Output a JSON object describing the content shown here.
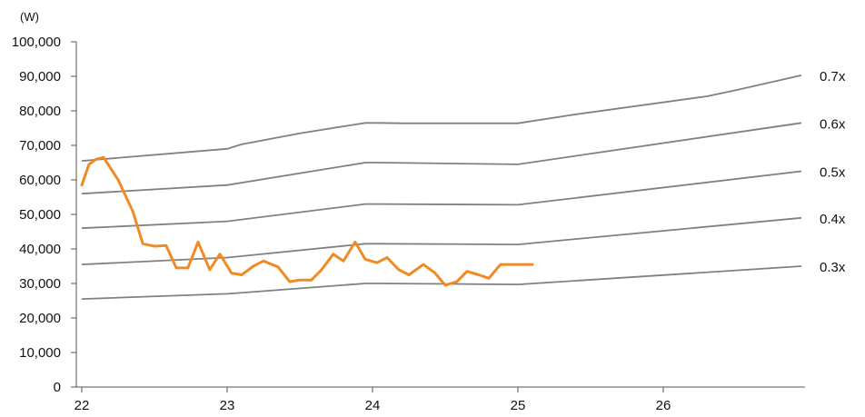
{
  "chart_data": {
    "type": "line",
    "unit_label": "(W)",
    "y_ticks": [
      "0",
      "10,000",
      "20,000",
      "30,000",
      "40,000",
      "50,000",
      "60,000",
      "70,000",
      "80,000",
      "90,000",
      "100,000"
    ],
    "x_ticks": [
      "22",
      "23",
      "24",
      "25",
      "26"
    ],
    "ylim": [
      0,
      100000
    ],
    "xlim": [
      22,
      26.95
    ],
    "grid": false,
    "colors": {
      "price": "#F08A24",
      "band": "#808080",
      "axis": "#555555"
    },
    "price_series": {
      "x": [
        22.0,
        22.05,
        22.1,
        22.15,
        22.25,
        22.35,
        22.42,
        22.5,
        22.58,
        22.65,
        22.73,
        22.8,
        22.88,
        22.95,
        23.03,
        23.1,
        23.18,
        23.25,
        23.35,
        23.43,
        23.5,
        23.58,
        23.65,
        23.73,
        23.8,
        23.88,
        23.95,
        24.03,
        24.1,
        24.18,
        24.25,
        24.35,
        24.43,
        24.5,
        24.58,
        24.65,
        24.73,
        24.8,
        24.88,
        24.95,
        25.03,
        25.1
      ],
      "y": [
        58500,
        64500,
        66000,
        66500,
        60000,
        51000,
        41500,
        40800,
        41000,
        34500,
        34500,
        42000,
        34000,
        38500,
        33000,
        32500,
        35000,
        36500,
        34800,
        30500,
        31000,
        31000,
        34000,
        38500,
        36500,
        42000,
        37000,
        36000,
        37500,
        34000,
        32500,
        35500,
        33000,
        29500,
        30500,
        33500,
        32500,
        31500,
        35500,
        35500,
        35500,
        35500
      ]
    },
    "bands": [
      {
        "name": "0.7x",
        "x": [
          22.0,
          23.0,
          23.1,
          23.5,
          23.95,
          24.05,
          24.2,
          25.0,
          25.4,
          26.3,
          26.5,
          26.95
        ],
        "y": [
          65500,
          69000,
          70300,
          73500,
          76500,
          76500,
          76400,
          76400,
          79000,
          84200,
          86000,
          90300
        ]
      },
      {
        "name": "0.6x",
        "x": [
          22.0,
          23.0,
          23.95,
          24.05,
          25.0,
          26.95
        ],
        "y": [
          56000,
          58500,
          65000,
          65000,
          64500,
          76500
        ]
      },
      {
        "name": "0.5x",
        "x": [
          22.0,
          23.0,
          23.95,
          24.05,
          25.0,
          26.95
        ],
        "y": [
          46000,
          48000,
          53000,
          53000,
          52800,
          62500
        ]
      },
      {
        "name": "0.4x",
        "x": [
          22.0,
          23.0,
          23.95,
          24.05,
          25.0,
          26.95
        ],
        "y": [
          35500,
          37500,
          41500,
          41500,
          41300,
          49000
        ]
      },
      {
        "name": "0.3x",
        "x": [
          22.0,
          23.0,
          23.95,
          24.05,
          25.0,
          26.95
        ],
        "y": [
          25500,
          27000,
          30000,
          30000,
          29700,
          35000
        ]
      }
    ]
  }
}
